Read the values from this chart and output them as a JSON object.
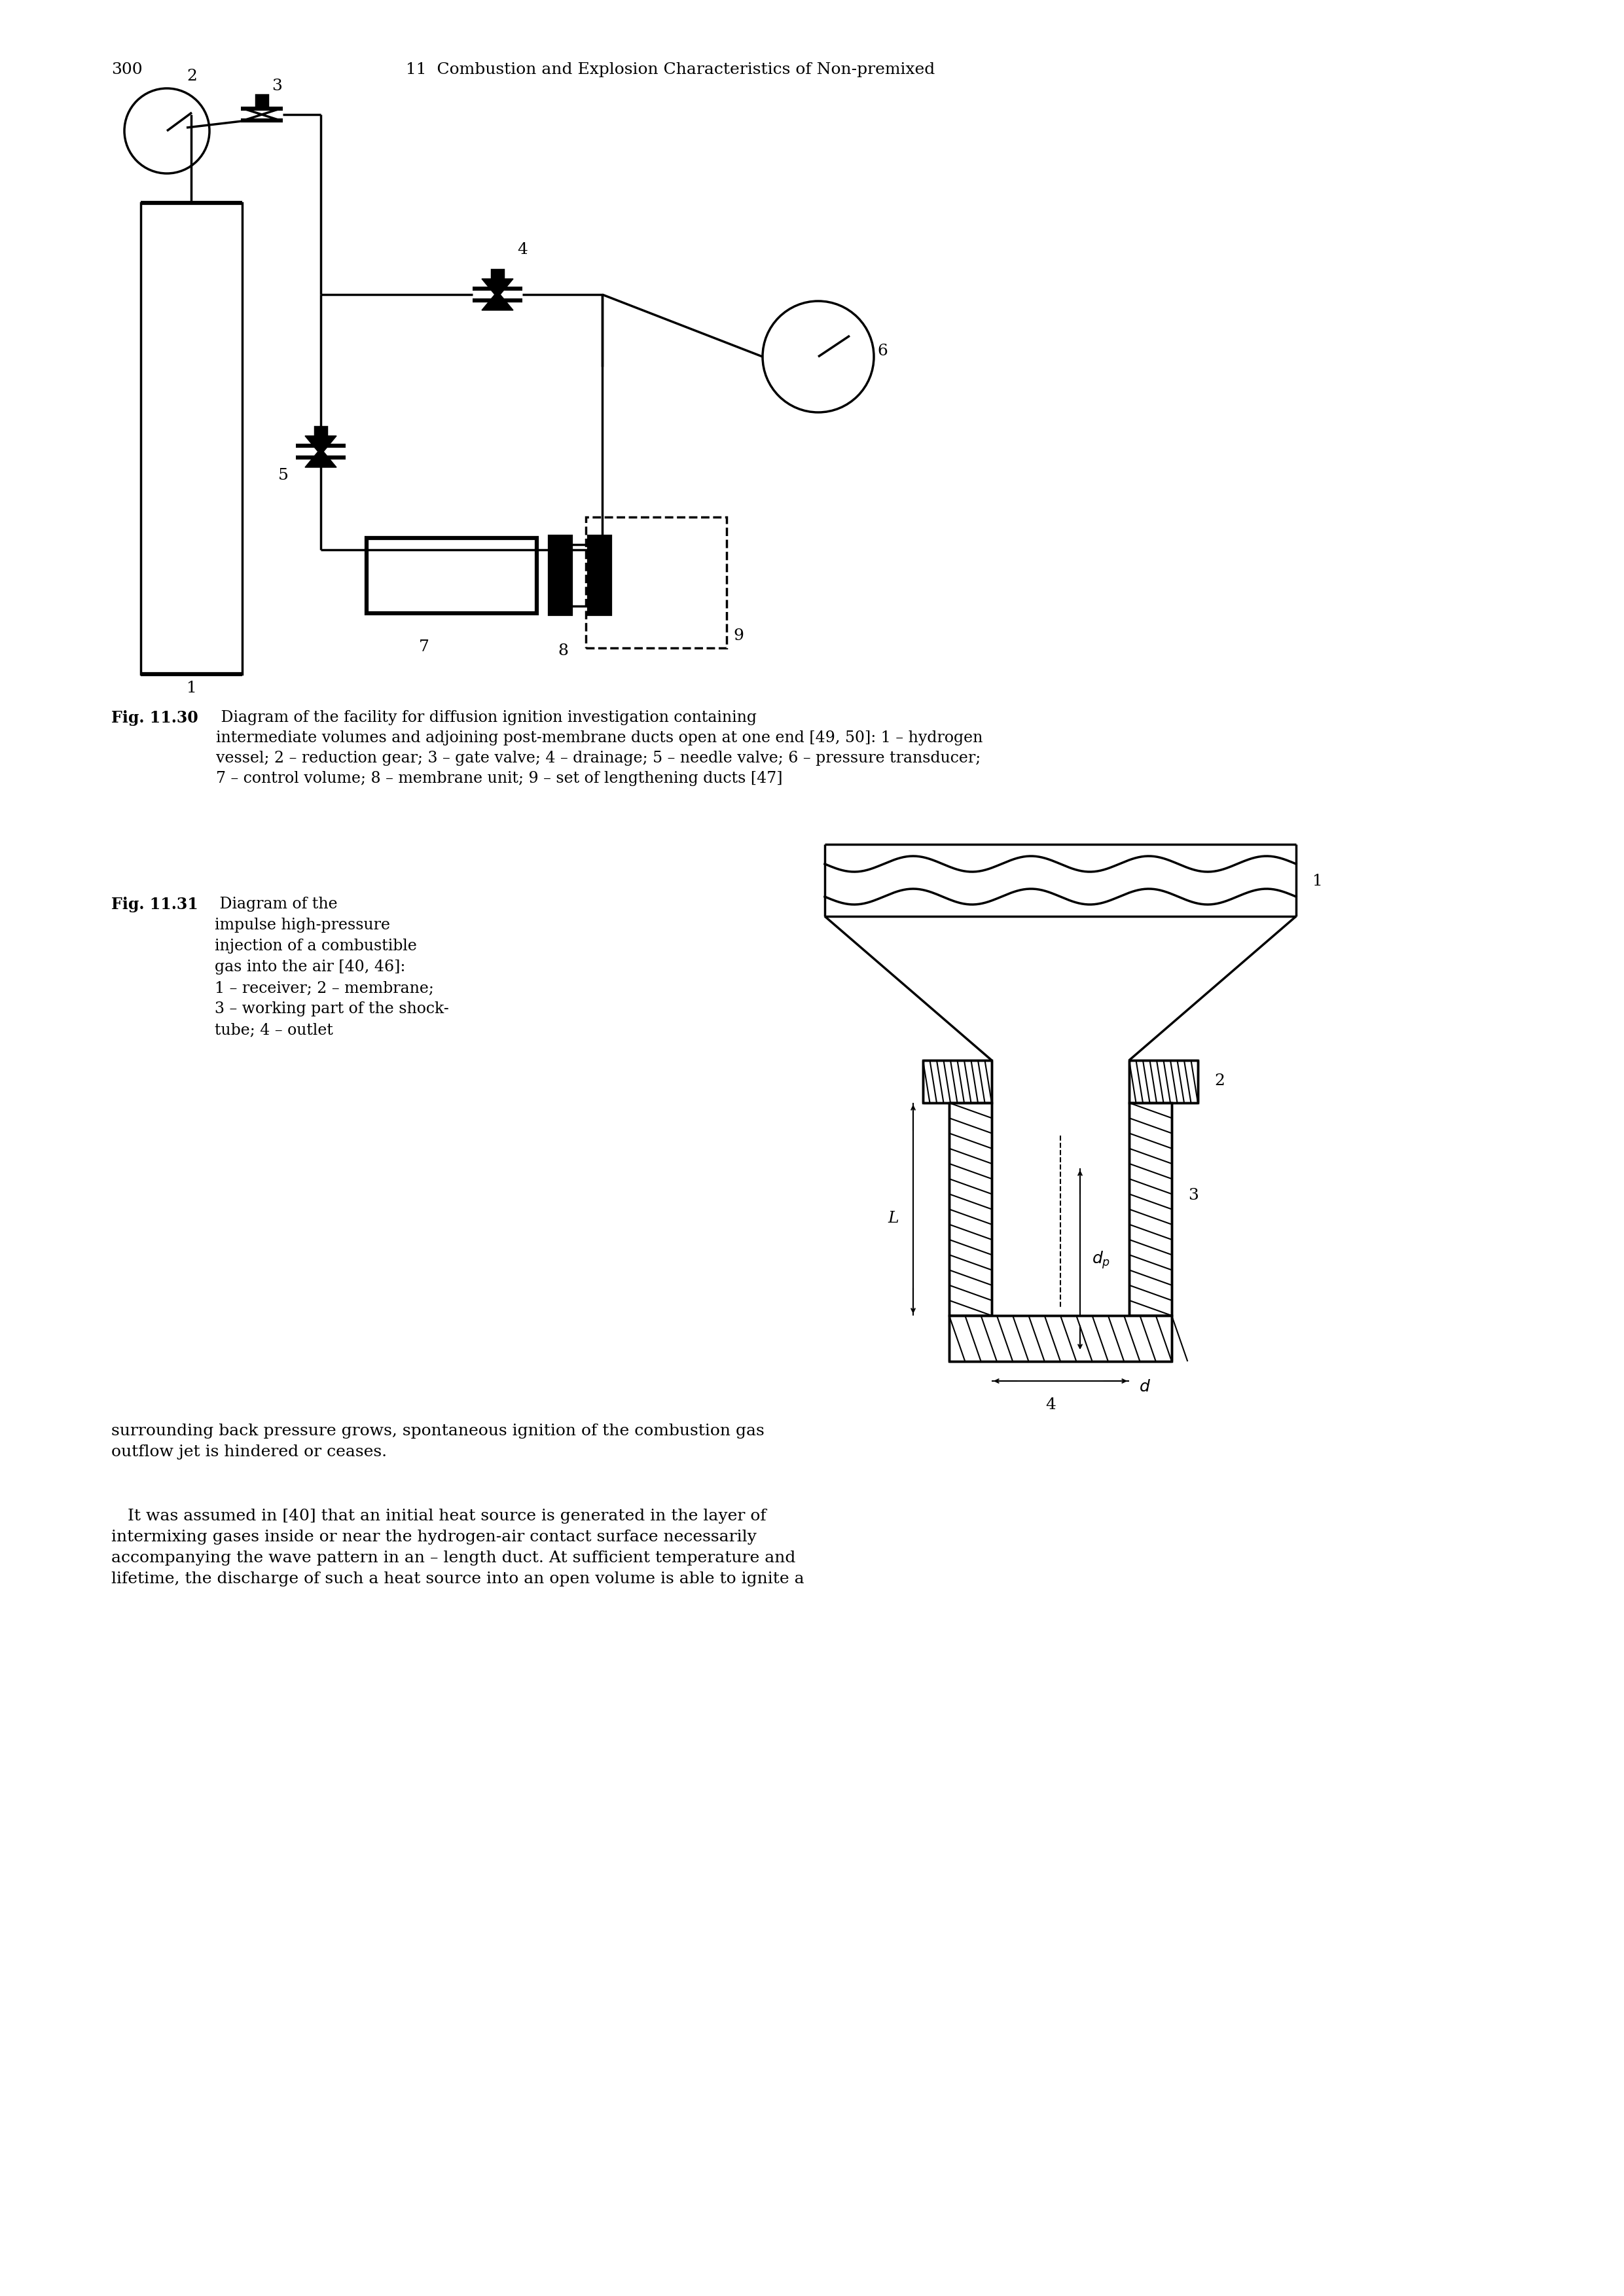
{
  "page_number": "300",
  "header_text": "11  Combustion and Explosion Characteristics of Non-premixed",
  "fig1_caption_bold": "Fig. 11.30",
  "fig1_caption_normal": " Diagram of the facility for diffusion ignition investigation containing intermediate volumes and adjoining post-membrane ducts open at one end [49, 50]: 1 – hydrogen vessel; 2 – reduction gear; 3 – gate valve; 4 – drainage; 5 – needle valve; 6 – pressure transducer; 7 – control volume; 8 – membrane unit; 9 – set of lengthening ducts [47]",
  "fig2_caption_bold": "Fig. 11.31",
  "fig2_caption_normal": " Diagram of the impulse high-pressure injection of a combustible gas into the air [40, 46]:\n1 – receiver; 2 – membrane;\n3 – working part of the shock-tube; 4 – outlet",
  "body_text_1": "surrounding back pressure grows, spontaneous ignition of the combustion gas outflow jet is hindered or ceases.",
  "body_text_2": "It was assumed in [40] that an initial heat source is generated in the layer of intermixing gases inside or near the hydrogen-air contact surface necessarily accompanying the wave pattern in an L length duct. At sufficient temperature and lifetime, the discharge of such a heat source into an open volume is able to ignite a",
  "bg_color": "#ffffff",
  "line_color": "#000000"
}
